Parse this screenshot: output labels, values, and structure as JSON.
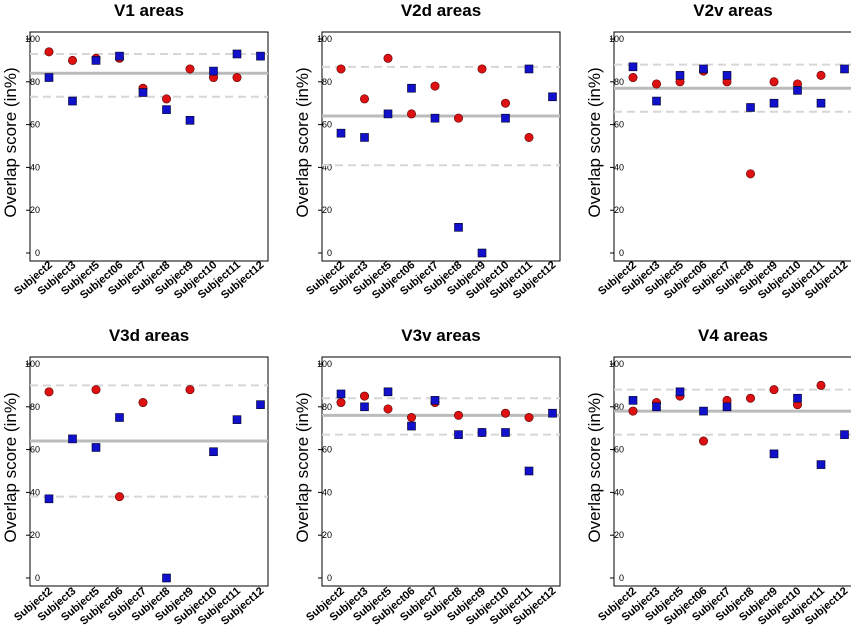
{
  "figure": {
    "ylabel": "Overlap score (in%)",
    "ylim": [
      0,
      100
    ],
    "yticks": [
      0,
      20,
      40,
      60,
      80,
      100
    ]
  },
  "colors": {
    "circle": "#dd1111",
    "square": "#1111cc",
    "mean_line": "#bbbbbb",
    "bound_line": "#d6d6d6"
  },
  "chart_data": [
    {
      "type": "scatter",
      "title": "V1 areas",
      "ylabel": "Overlap score (in%)",
      "categories": [
        "Subject2",
        "Subject3",
        "Subject5",
        "Subject06",
        "Subject7",
        "Subject8",
        "Subject9",
        "Subject10",
        "Subject11",
        "Subject12"
      ],
      "series": [
        {
          "name": "circle",
          "marker": "circle",
          "values": [
            94,
            90,
            91,
            91,
            77,
            72,
            86,
            82,
            82,
            null
          ]
        },
        {
          "name": "square",
          "marker": "square",
          "values": [
            82,
            71,
            90,
            92,
            75,
            67,
            62,
            85,
            93,
            92
          ]
        }
      ],
      "mean": 84,
      "upper": 93,
      "lower": 73
    },
    {
      "type": "scatter",
      "title": "V2d areas",
      "ylabel": "Overlap score (in%)",
      "categories": [
        "Subject2",
        "Subject3",
        "Subject5",
        "Subject06",
        "Subject7",
        "Subject8",
        "Subject9",
        "Subject10",
        "Subject11",
        "Subject12"
      ],
      "series": [
        {
          "name": "circle",
          "marker": "circle",
          "values": [
            86,
            72,
            91,
            65,
            78,
            63,
            86,
            70,
            54,
            null
          ]
        },
        {
          "name": "square",
          "marker": "square",
          "values": [
            56,
            54,
            65,
            77,
            63,
            12,
            0,
            63,
            86,
            73
          ]
        }
      ],
      "mean": 64,
      "upper": 87,
      "lower": 41
    },
    {
      "type": "scatter",
      "title": "V2v areas",
      "ylabel": "Overlap score (in%)",
      "categories": [
        "Subject2",
        "Subject3",
        "Subject5",
        "Subject06",
        "Subject7",
        "Subject8",
        "Subject9",
        "Subject10",
        "Subject11",
        "Subject12"
      ],
      "series": [
        {
          "name": "circle",
          "marker": "circle",
          "values": [
            82,
            79,
            80,
            85,
            80,
            37,
            80,
            79,
            83,
            null
          ]
        },
        {
          "name": "square",
          "marker": "square",
          "values": [
            87,
            71,
            83,
            86,
            83,
            68,
            70,
            76,
            70,
            86
          ]
        }
      ],
      "mean": 77,
      "upper": 88,
      "lower": 66
    },
    {
      "type": "scatter",
      "title": "V3d areas",
      "ylabel": "Overlap score (in%)",
      "categories": [
        "Subject2",
        "Subject3",
        "Subject5",
        "Subject06",
        "Subject7",
        "Subject8",
        "Subject9",
        "Subject10",
        "Subject11",
        "Subject12"
      ],
      "series": [
        {
          "name": "circle",
          "marker": "circle",
          "values": [
            87,
            null,
            88,
            38,
            82,
            null,
            88,
            null,
            null,
            null
          ]
        },
        {
          "name": "square",
          "marker": "square",
          "values": [
            37,
            65,
            61,
            75,
            null,
            0,
            null,
            59,
            74,
            81
          ]
        }
      ],
      "mean": 64,
      "upper": 90,
      "lower": 38
    },
    {
      "type": "scatter",
      "title": "V3v areas",
      "ylabel": "Overlap score (in%)",
      "categories": [
        "Subject2",
        "Subject3",
        "Subject5",
        "Subject06",
        "Subject7",
        "Subject8",
        "Subject9",
        "Subject10",
        "Subject11",
        "Subject12"
      ],
      "series": [
        {
          "name": "circle",
          "marker": "circle",
          "values": [
            82,
            85,
            79,
            75,
            82,
            76,
            68,
            77,
            75,
            null
          ]
        },
        {
          "name": "square",
          "marker": "square",
          "values": [
            86,
            80,
            87,
            71,
            83,
            67,
            68,
            68,
            50,
            77
          ]
        }
      ],
      "mean": 76,
      "upper": 84,
      "lower": 67
    },
    {
      "type": "scatter",
      "title": "V4 areas",
      "ylabel": "Overlap score (in%)",
      "categories": [
        "Subject2",
        "Subject3",
        "Subject5",
        "Subject06",
        "Subject7",
        "Subject8",
        "Subject9",
        "Subject10",
        "Subject11",
        "Subject12"
      ],
      "series": [
        {
          "name": "circle",
          "marker": "circle",
          "values": [
            78,
            82,
            85,
            64,
            83,
            84,
            88,
            81,
            90,
            null
          ]
        },
        {
          "name": "square",
          "marker": "square",
          "values": [
            83,
            80,
            87,
            78,
            80,
            null,
            58,
            84,
            53,
            67
          ]
        }
      ],
      "mean": 78,
      "upper": 88,
      "lower": 67
    }
  ]
}
